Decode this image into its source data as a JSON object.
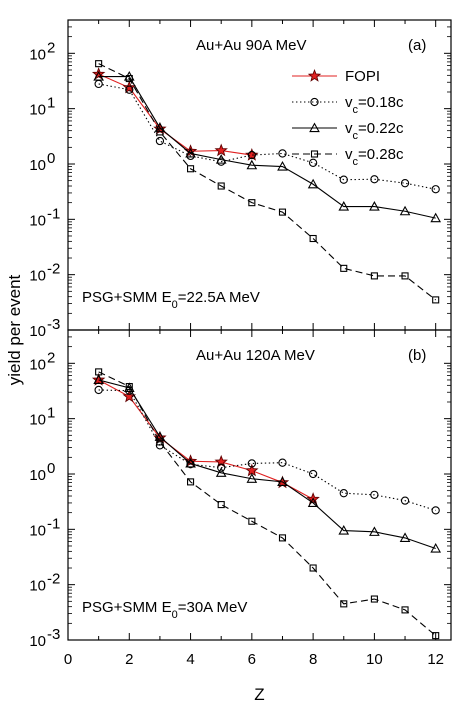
{
  "chart_data": {
    "type": "line",
    "ylabel": "yield per event",
    "xlabel": "Z",
    "xlim": [
      0,
      12.5
    ],
    "ylim": [
      0.001,
      400
    ],
    "yscale": "log",
    "x_ticks": [
      "0",
      "2",
      "4",
      "6",
      "8",
      "10",
      "12"
    ],
    "y_tick_bases": [
      "10",
      "10",
      "10",
      "10",
      "10",
      "10"
    ],
    "y_tick_exps": [
      "-3",
      "-2",
      "-1",
      "0",
      "1",
      "2"
    ],
    "legend": [
      {
        "label": "FOPI",
        "color": "#e02020",
        "marker": "star",
        "dash": "solid"
      },
      {
        "label_main": "v",
        "label_sub": "c",
        "label_rest": "=0.18c",
        "color": "#000000",
        "marker": "circle",
        "dash": "dotted"
      },
      {
        "label_main": "v",
        "label_sub": "c",
        "label_rest": "=0.22c",
        "color": "#000000",
        "marker": "triangle",
        "dash": "solid"
      },
      {
        "label_main": "v",
        "label_sub": "c",
        "label_rest": "=0.28c",
        "color": "#000000",
        "marker": "square",
        "dash": "dashed"
      }
    ],
    "panels": [
      {
        "title": "Au+Au  90A MeV",
        "tag": "(a)",
        "note_main": "PSG+SMM E",
        "note_sub": "0",
        "note_rest": "=22.5A MeV",
        "series": [
          {
            "marker": "star",
            "dash": "solid",
            "color": "#e02020",
            "x": [
              1,
              2,
              3,
              4,
              5,
              6
            ],
            "y": [
              42,
              24,
              4.3,
              1.7,
              1.75,
              1.45
            ]
          },
          {
            "marker": "circle",
            "dash": "dotted",
            "color": "#000000",
            "x": [
              1,
              2,
              3,
              4,
              5,
              6,
              7,
              8,
              9,
              10,
              11,
              12
            ],
            "y": [
              28,
              22,
              2.6,
              1.4,
              1.1,
              1.45,
              1.55,
              1.05,
              0.52,
              0.53,
              0.45,
              0.35
            ]
          },
          {
            "marker": "triangle",
            "dash": "solid",
            "color": "#000000",
            "x": [
              1,
              2,
              3,
              4,
              5,
              6,
              7,
              8,
              9,
              10,
              11,
              12
            ],
            "y": [
              38,
              38,
              4.5,
              1.55,
              1.2,
              0.95,
              0.9,
              0.43,
              0.17,
              0.17,
              0.14,
              0.105
            ]
          },
          {
            "marker": "square",
            "dash": "dashed",
            "color": "#000000",
            "x": [
              1,
              2,
              3,
              4,
              5,
              6,
              7,
              8,
              9,
              10,
              11,
              12
            ],
            "y": [
              65,
              35,
              3.8,
              0.82,
              0.4,
              0.2,
              0.135,
              0.045,
              0.013,
              0.0095,
              0.0095,
              0.0035
            ]
          }
        ]
      },
      {
        "title": "Au+Au  120A MeV",
        "tag": "(b)",
        "note_main": "PSG+SMM E",
        "note_sub": "0",
        "note_rest": "=30A MeV",
        "series": [
          {
            "marker": "star",
            "dash": "solid",
            "color": "#e02020",
            "x": [
              1,
              2,
              3,
              4,
              5,
              6,
              7,
              8
            ],
            "y": [
              50,
              25,
              4.5,
              1.7,
              1.65,
              1.15,
              0.7,
              0.35
            ]
          },
          {
            "marker": "circle",
            "dash": "dotted",
            "color": "#000000",
            "x": [
              1,
              2,
              3,
              4,
              5,
              6,
              7,
              8,
              9,
              10,
              11,
              12
            ],
            "y": [
              33,
              32,
              3.3,
              1.5,
              1.3,
              1.55,
              1.6,
              1.0,
              0.45,
              0.42,
              0.33,
              0.22
            ]
          },
          {
            "marker": "triangle",
            "dash": "solid",
            "color": "#000000",
            "x": [
              1,
              2,
              3,
              4,
              5,
              6,
              7,
              8,
              9,
              10,
              11,
              12
            ],
            "y": [
              50,
              36,
              4.7,
              1.55,
              1.05,
              0.82,
              0.72,
              0.3,
              0.095,
              0.09,
              0.07,
              0.045
            ]
          },
          {
            "marker": "square",
            "dash": "dashed",
            "color": "#000000",
            "x": [
              1,
              2,
              3,
              4,
              5,
              6,
              7,
              8,
              9,
              10,
              11,
              12
            ],
            "y": [
              70,
              38,
              3.8,
              0.72,
              0.28,
              0.14,
              0.07,
              0.02,
              0.0045,
              0.0055,
              0.0035,
              0.0012
            ]
          }
        ]
      }
    ]
  }
}
